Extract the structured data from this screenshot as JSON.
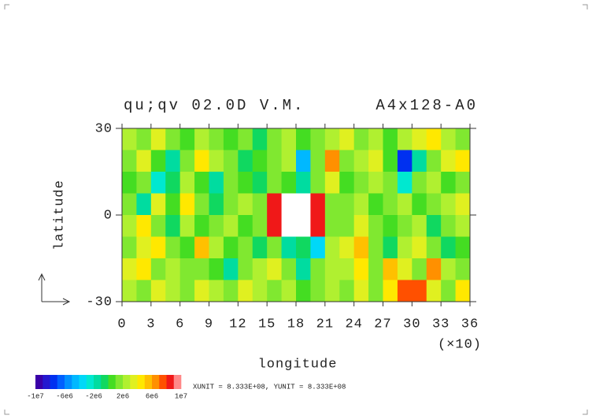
{
  "chart_data": {
    "type": "contour",
    "title": "qu;qv 02.0D V.M.",
    "subtitle": "A4x128-A0",
    "x_label": "longitude",
    "y_label": "latitude",
    "x_multiplier": "(×10)",
    "annotation": "XUNIT = 8.333E+08, YUNIT = 8.333E+08",
    "xlim": [
      0,
      360
    ],
    "ylim": [
      -30,
      30
    ],
    "xticks": [
      0,
      {
        "value": 30,
        "label": "3"
      },
      {
        "value": 60,
        "label": "6"
      },
      {
        "value": 90,
        "label": "9"
      },
      {
        "value": 120,
        "label": "12"
      },
      {
        "value": 150,
        "label": "15"
      },
      {
        "value": 180,
        "label": "18"
      },
      {
        "value": 210,
        "label": "21"
      },
      {
        "value": 240,
        "label": "24"
      },
      {
        "value": 270,
        "label": "27"
      },
      {
        "value": 300,
        "label": "30"
      },
      {
        "value": 330,
        "label": "33"
      },
      {
        "value": 360,
        "label": "36"
      }
    ],
    "yticks": [
      -30,
      0,
      30
    ],
    "x": [
      7.5,
      22.5,
      37.5,
      52.5,
      67.5,
      82.5,
      97.5,
      112.5,
      127.5,
      142.5,
      157.5,
      172.5,
      187.5,
      202.5,
      217.5,
      232.5,
      247.5,
      262.5,
      277.5,
      292.5,
      307.5,
      322.5,
      337.5,
      352.5
    ],
    "y": [
      26.25,
      18.75,
      11.25,
      3.75,
      -3.75,
      -11.25,
      -18.75,
      -26.25
    ],
    "values": [
      [
        2000000.0,
        1000000.0,
        3000000.0,
        1000000.0,
        0,
        2000000.0,
        1000000.0,
        0,
        1000000.0,
        -1000000.0,
        1000000.0,
        2000000.0,
        0,
        1000000.0,
        2000000.0,
        3000000.0,
        1000000.0,
        2000000.0,
        0,
        2000000.0,
        3000000.0,
        4000000.0,
        2000000.0,
        1000000.0
      ],
      [
        1000000.0,
        3000000.0,
        0,
        -2000000.0,
        1000000.0,
        4000000.0,
        2000000.0,
        1000000.0,
        -1000000.0,
        0,
        1000000.0,
        2000000.0,
        -5000000.0,
        1000000.0,
        6000000.0,
        1000000.0,
        2000000.0,
        3000000.0,
        0,
        -8000000.0,
        -2000000.0,
        1000000.0,
        3000000.0,
        4000000.0
      ],
      [
        0,
        1000000.0,
        -3000000.0,
        -1000000.0,
        2000000.0,
        0,
        -2000000.0,
        1000000.0,
        0,
        -1000000.0,
        1000000.0,
        0,
        -2000000.0,
        1000000.0,
        3000000.0,
        0,
        1000000.0,
        2000000.0,
        1000000.0,
        -3000000.0,
        1000000.0,
        2000000.0,
        0,
        1000000.0
      ],
      [
        1000000.0,
        -2000000.0,
        3000000.0,
        0,
        4000000.0,
        1000000.0,
        -1000000.0,
        1000000.0,
        2000000.0,
        1000000.0,
        8000000.0,
        12000000.0,
        12000000.0,
        8000000.0,
        1000000.0,
        1000000.0,
        2000000.0,
        0,
        1000000.0,
        2000000.0,
        0,
        1000000.0,
        2000000.0,
        3000000.0
      ],
      [
        2000000.0,
        4000000.0,
        1000000.0,
        -1000000.0,
        2000000.0,
        0,
        1000000.0,
        2000000.0,
        0,
        1000000.0,
        8000000.0,
        12000000.0,
        12000000.0,
        8000000.0,
        1000000.0,
        1000000.0,
        3000000.0,
        1000000.0,
        0,
        1000000.0,
        2000000.0,
        -1000000.0,
        1000000.0,
        2000000.0
      ],
      [
        1000000.0,
        3000000.0,
        4000000.0,
        1000000.0,
        0,
        5000000.0,
        2000000.0,
        0,
        1000000.0,
        -1000000.0,
        1000000.0,
        -2000000.0,
        -1000000.0,
        -4000000.0,
        2000000.0,
        3000000.0,
        5000000.0,
        1000000.0,
        -1000000.0,
        2000000.0,
        3000000.0,
        1000000.0,
        -1000000.0,
        0
      ],
      [
        3000000.0,
        4000000.0,
        1000000.0,
        2000000.0,
        1000000.0,
        1000000.0,
        0,
        -2000000.0,
        1000000.0,
        2000000.0,
        3000000.0,
        1000000.0,
        -2000000.0,
        1000000.0,
        2000000.0,
        2000000.0,
        4000000.0,
        1000000.0,
        5000000.0,
        3000000.0,
        1000000.0,
        6000000.0,
        2000000.0,
        1000000.0
      ],
      [
        2000000.0,
        1000000.0,
        3000000.0,
        2000000.0,
        1000000.0,
        3000000.0,
        2000000.0,
        1000000.0,
        3000000.0,
        2000000.0,
        1000000.0,
        2000000.0,
        0,
        1000000.0,
        2000000.0,
        1000000.0,
        3000000.0,
        1000000.0,
        4000000.0,
        7000000.0,
        7000000.0,
        3000000.0,
        1000000.0,
        4000000.0
      ]
    ],
    "colorbar": {
      "levels": [
        -10000000.0,
        -9000000.0,
        -8000000.0,
        -7000000.0,
        -6000000.0,
        -5000000.0,
        -4000000.0,
        -3000000.0,
        -2000000.0,
        -1000000.0,
        0,
        1000000.0,
        2000000.0,
        3000000.0,
        4000000.0,
        5000000.0,
        6000000.0,
        7000000.0,
        8000000.0,
        9000000.0,
        10000000.0
      ],
      "colors": [
        "#3a00a8",
        "#2418d0",
        "#0030f0",
        "#0060ff",
        "#0090ff",
        "#00b8ff",
        "#00d8f8",
        "#00e8d0",
        "#00dca0",
        "#10d860",
        "#44dd22",
        "#80e830",
        "#b0f030",
        "#e0f020",
        "#ffe800",
        "#ffc000",
        "#ff9000",
        "#ff5000",
        "#f01818",
        "#ff8888"
      ],
      "ticks": [
        {
          "value": -10000000.0,
          "label": "-1e7"
        },
        {
          "value": -6000000.0,
          "label": "-6e6"
        },
        {
          "value": -2000000.0,
          "label": "-2e6"
        },
        {
          "value": 2000000.0,
          "label": "2e6"
        },
        {
          "value": 6000000.0,
          "label": "6e6"
        },
        {
          "value": 10000000.0,
          "label": "1e7"
        }
      ]
    }
  }
}
